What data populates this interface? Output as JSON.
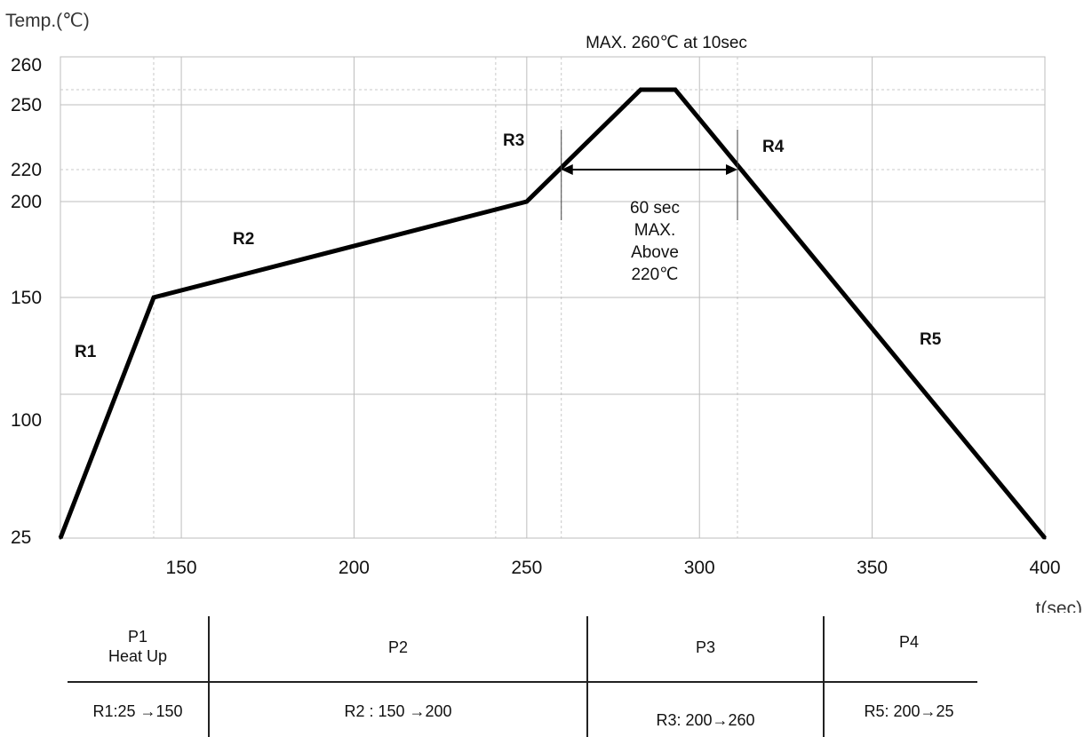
{
  "chart_data": {
    "type": "line",
    "ylabel": "Temp.(℃)",
    "xlabel": "t(sec)",
    "xlim": [
      115,
      400
    ],
    "x_ticks": [
      150,
      200,
      250,
      300,
      350,
      400
    ],
    "y_tick_labels": [
      "25",
      "100",
      "150",
      "200",
      "220",
      "250",
      "260"
    ],
    "grid": true,
    "series": [
      {
        "x": [
          115,
          142,
          250,
          283,
          293,
          400
        ],
        "y": [
          25,
          150,
          200,
          260,
          260,
          25
        ]
      }
    ],
    "regions": [
      "R1",
      "R2",
      "R3",
      "R4",
      "R5"
    ],
    "annotations": {
      "peak": "MAX. 260℃ at 10sec",
      "above_line1": "60 sec",
      "above_line2": "MAX.",
      "above_line3": "Above",
      "above_line4": "220℃"
    },
    "arrow_span": [
      260,
      311
    ]
  },
  "phase_table": {
    "phases": [
      {
        "name": "P1",
        "sub": "Heat Up",
        "rate": "R1:25 →150"
      },
      {
        "name": "P2",
        "sub": "",
        "rate": "R2 : 150 →200"
      },
      {
        "name": "P3",
        "sub": "",
        "rate": "R3: 200→260"
      },
      {
        "name": "P4",
        "sub": "",
        "rate": "R5: 200→25"
      }
    ]
  },
  "colors": {
    "line": "#000000",
    "grid": "#bdbdbd",
    "grid_dashed": "#c8c8c8"
  }
}
